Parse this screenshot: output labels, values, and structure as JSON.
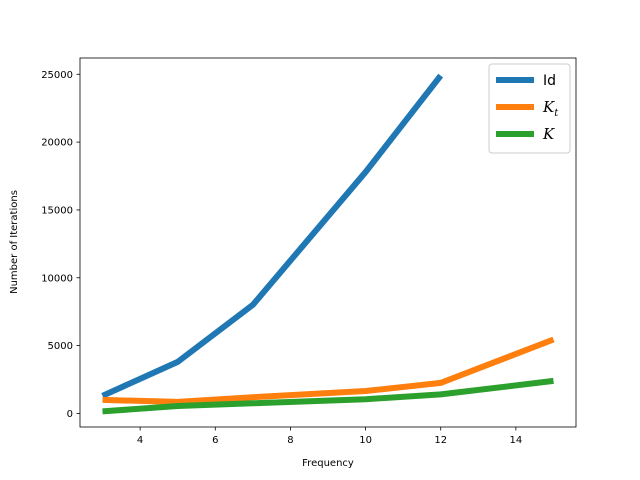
{
  "chart_data": {
    "type": "line",
    "xlabel": "Frequency",
    "ylabel": "Number of Iterations",
    "xlim": [
      2.4,
      15.6
    ],
    "ylim": [
      -1000,
      26200
    ],
    "xticks": [
      4,
      6,
      8,
      10,
      12,
      14
    ],
    "yticks": [
      0,
      5000,
      10000,
      15000,
      20000,
      25000
    ],
    "grid": false,
    "legend_position": "top-right",
    "series": [
      {
        "name": "Id",
        "legend_main": "Id",
        "legend_sub": "",
        "legend_italic": false,
        "color": "#1f77b4",
        "x": [
          3,
          5,
          7,
          10,
          12
        ],
        "y": [
          1300,
          3800,
          8000,
          17800,
          24900
        ]
      },
      {
        "name": "K_t",
        "legend_main": "K",
        "legend_sub": "t",
        "legend_italic": true,
        "color": "#ff7f0e",
        "x": [
          3,
          5,
          7,
          10,
          12,
          15
        ],
        "y": [
          1000,
          850,
          1200,
          1650,
          2250,
          5450
        ]
      },
      {
        "name": "K",
        "legend_main": "K",
        "legend_sub": "",
        "legend_italic": true,
        "color": "#2ca02c",
        "x": [
          3,
          5,
          7,
          10,
          12,
          15
        ],
        "y": [
          150,
          550,
          750,
          1050,
          1400,
          2400
        ]
      }
    ]
  }
}
